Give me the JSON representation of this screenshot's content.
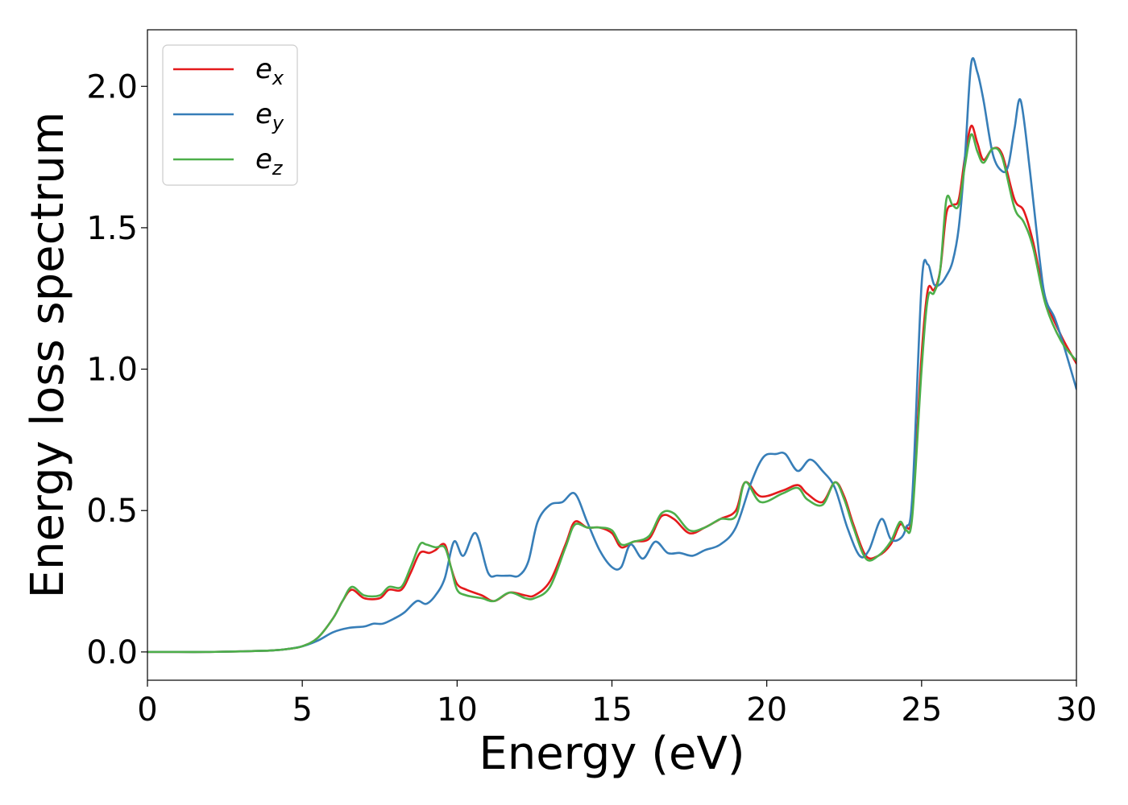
{
  "chart_data": {
    "type": "line",
    "xlabel": "Energy (eV)",
    "ylabel": "Energy loss spectrum",
    "xlim": [
      0,
      30
    ],
    "ylim": [
      -0.1,
      2.2
    ],
    "xticks": [
      0,
      5,
      10,
      15,
      20,
      25,
      30
    ],
    "yticks": [
      0.0,
      0.5,
      1.0,
      1.5,
      2.0
    ],
    "xtick_labels": [
      "0",
      "5",
      "10",
      "15",
      "20",
      "25",
      "30"
    ],
    "ytick_labels": [
      "0.0",
      "0.5",
      "1.0",
      "1.5",
      "2.0"
    ],
    "grid": false,
    "legend_position": "top-left",
    "series": [
      {
        "name": "e",
        "subscript": "x",
        "color": "#e41a1c",
        "x": [
          0,
          1,
          2,
          3,
          4,
          4.5,
          5,
          5.5,
          6,
          6.3,
          6.6,
          7,
          7.5,
          7.8,
          8.2,
          8.5,
          8.8,
          9.1,
          9.3,
          9.6,
          9.8,
          10.0,
          10.3,
          10.8,
          11.2,
          11.7,
          12.2,
          12.5,
          13.0,
          13.5,
          13.8,
          14.2,
          14.6,
          15.0,
          15.3,
          15.7,
          16.2,
          16.6,
          17.0,
          17.5,
          18.0,
          18.5,
          19.0,
          19.3,
          19.8,
          20.5,
          21.0,
          21.3,
          21.8,
          22.2,
          22.5,
          22.8,
          23.2,
          23.6,
          24.0,
          24.3,
          24.5,
          24.7,
          25.0,
          25.2,
          25.4,
          25.6,
          25.8,
          26.0,
          26.2,
          26.4,
          26.6,
          26.8,
          27.0,
          27.3,
          27.6,
          28.0,
          28.3,
          28.6,
          29.0,
          29.5,
          30.0
        ],
        "values": [
          0.0,
          0.0,
          0.0,
          0.002,
          0.005,
          0.01,
          0.02,
          0.05,
          0.12,
          0.18,
          0.22,
          0.19,
          0.19,
          0.22,
          0.22,
          0.28,
          0.35,
          0.35,
          0.36,
          0.38,
          0.3,
          0.24,
          0.22,
          0.2,
          0.18,
          0.21,
          0.2,
          0.2,
          0.25,
          0.38,
          0.46,
          0.44,
          0.44,
          0.42,
          0.37,
          0.39,
          0.4,
          0.48,
          0.47,
          0.42,
          0.44,
          0.47,
          0.5,
          0.6,
          0.55,
          0.57,
          0.59,
          0.56,
          0.53,
          0.6,
          0.55,
          0.45,
          0.34,
          0.34,
          0.38,
          0.45,
          0.44,
          0.5,
          1.05,
          1.28,
          1.28,
          1.35,
          1.55,
          1.58,
          1.6,
          1.75,
          1.86,
          1.8,
          1.74,
          1.78,
          1.76,
          1.6,
          1.56,
          1.45,
          1.25,
          1.12,
          1.02
        ]
      },
      {
        "name": "e",
        "subscript": "y",
        "color": "#377eb8",
        "x": [
          0,
          1,
          2,
          3,
          4,
          4.5,
          5,
          5.5,
          6,
          6.5,
          7,
          7.3,
          7.6,
          8.0,
          8.3,
          8.7,
          9.0,
          9.3,
          9.6,
          9.9,
          10.2,
          10.6,
          11.0,
          11.3,
          11.7,
          12.0,
          12.3,
          12.6,
          13.0,
          13.4,
          13.8,
          14.2,
          14.6,
          15.0,
          15.3,
          15.6,
          16.0,
          16.4,
          16.8,
          17.2,
          17.6,
          18.0,
          18.5,
          19.0,
          19.5,
          19.9,
          20.3,
          20.6,
          21.0,
          21.4,
          21.8,
          22.2,
          22.6,
          23.0,
          23.3,
          23.7,
          24.0,
          24.3,
          24.5,
          24.7,
          25.0,
          25.2,
          25.4,
          25.6,
          25.8,
          26.0,
          26.2,
          26.4,
          26.6,
          26.8,
          27.0,
          27.3,
          27.6,
          27.8,
          28.0,
          28.2,
          28.5,
          28.8,
          29.0,
          29.3,
          29.6,
          30.0
        ],
        "values": [
          0.0,
          0.0,
          0.0,
          0.002,
          0.005,
          0.01,
          0.02,
          0.04,
          0.07,
          0.085,
          0.09,
          0.1,
          0.1,
          0.12,
          0.14,
          0.18,
          0.17,
          0.2,
          0.26,
          0.39,
          0.34,
          0.42,
          0.28,
          0.27,
          0.27,
          0.27,
          0.32,
          0.46,
          0.52,
          0.53,
          0.56,
          0.46,
          0.36,
          0.3,
          0.3,
          0.38,
          0.33,
          0.39,
          0.35,
          0.35,
          0.34,
          0.36,
          0.38,
          0.44,
          0.6,
          0.69,
          0.7,
          0.7,
          0.64,
          0.68,
          0.64,
          0.58,
          0.44,
          0.34,
          0.36,
          0.47,
          0.4,
          0.4,
          0.44,
          0.55,
          1.3,
          1.37,
          1.3,
          1.3,
          1.33,
          1.38,
          1.5,
          1.75,
          2.08,
          2.05,
          1.95,
          1.76,
          1.7,
          1.72,
          1.85,
          1.95,
          1.7,
          1.4,
          1.25,
          1.18,
          1.08,
          0.93
        ]
      },
      {
        "name": "e",
        "subscript": "z",
        "color": "#4daf4a",
        "x": [
          0,
          1,
          2,
          3,
          4,
          4.5,
          5,
          5.5,
          6,
          6.3,
          6.6,
          7,
          7.5,
          7.8,
          8.2,
          8.5,
          8.8,
          9.0,
          9.3,
          9.6,
          9.8,
          10.0,
          10.3,
          10.8,
          11.2,
          11.7,
          12.2,
          12.5,
          13.0,
          13.5,
          13.8,
          14.2,
          14.6,
          15.0,
          15.3,
          15.7,
          16.2,
          16.6,
          17.0,
          17.5,
          18.0,
          18.5,
          19.0,
          19.3,
          19.8,
          20.5,
          21.0,
          21.3,
          21.8,
          22.2,
          22.5,
          22.8,
          23.2,
          23.6,
          24.0,
          24.3,
          24.5,
          24.7,
          25.0,
          25.2,
          25.4,
          25.6,
          25.8,
          26.0,
          26.2,
          26.4,
          26.6,
          26.8,
          27.0,
          27.3,
          27.6,
          28.0,
          28.3,
          28.6,
          29.0,
          29.5,
          30.0
        ],
        "values": [
          0.0,
          0.0,
          0.0,
          0.002,
          0.005,
          0.01,
          0.02,
          0.05,
          0.12,
          0.18,
          0.23,
          0.2,
          0.2,
          0.23,
          0.23,
          0.3,
          0.38,
          0.38,
          0.37,
          0.37,
          0.3,
          0.22,
          0.2,
          0.19,
          0.18,
          0.21,
          0.19,
          0.19,
          0.23,
          0.37,
          0.45,
          0.44,
          0.44,
          0.43,
          0.38,
          0.39,
          0.41,
          0.49,
          0.49,
          0.43,
          0.44,
          0.47,
          0.48,
          0.6,
          0.53,
          0.56,
          0.58,
          0.54,
          0.52,
          0.6,
          0.54,
          0.44,
          0.33,
          0.34,
          0.39,
          0.46,
          0.43,
          0.48,
          1.0,
          1.25,
          1.27,
          1.35,
          1.6,
          1.58,
          1.58,
          1.72,
          1.83,
          1.77,
          1.73,
          1.78,
          1.75,
          1.57,
          1.52,
          1.43,
          1.23,
          1.1,
          1.03
        ]
      }
    ]
  }
}
